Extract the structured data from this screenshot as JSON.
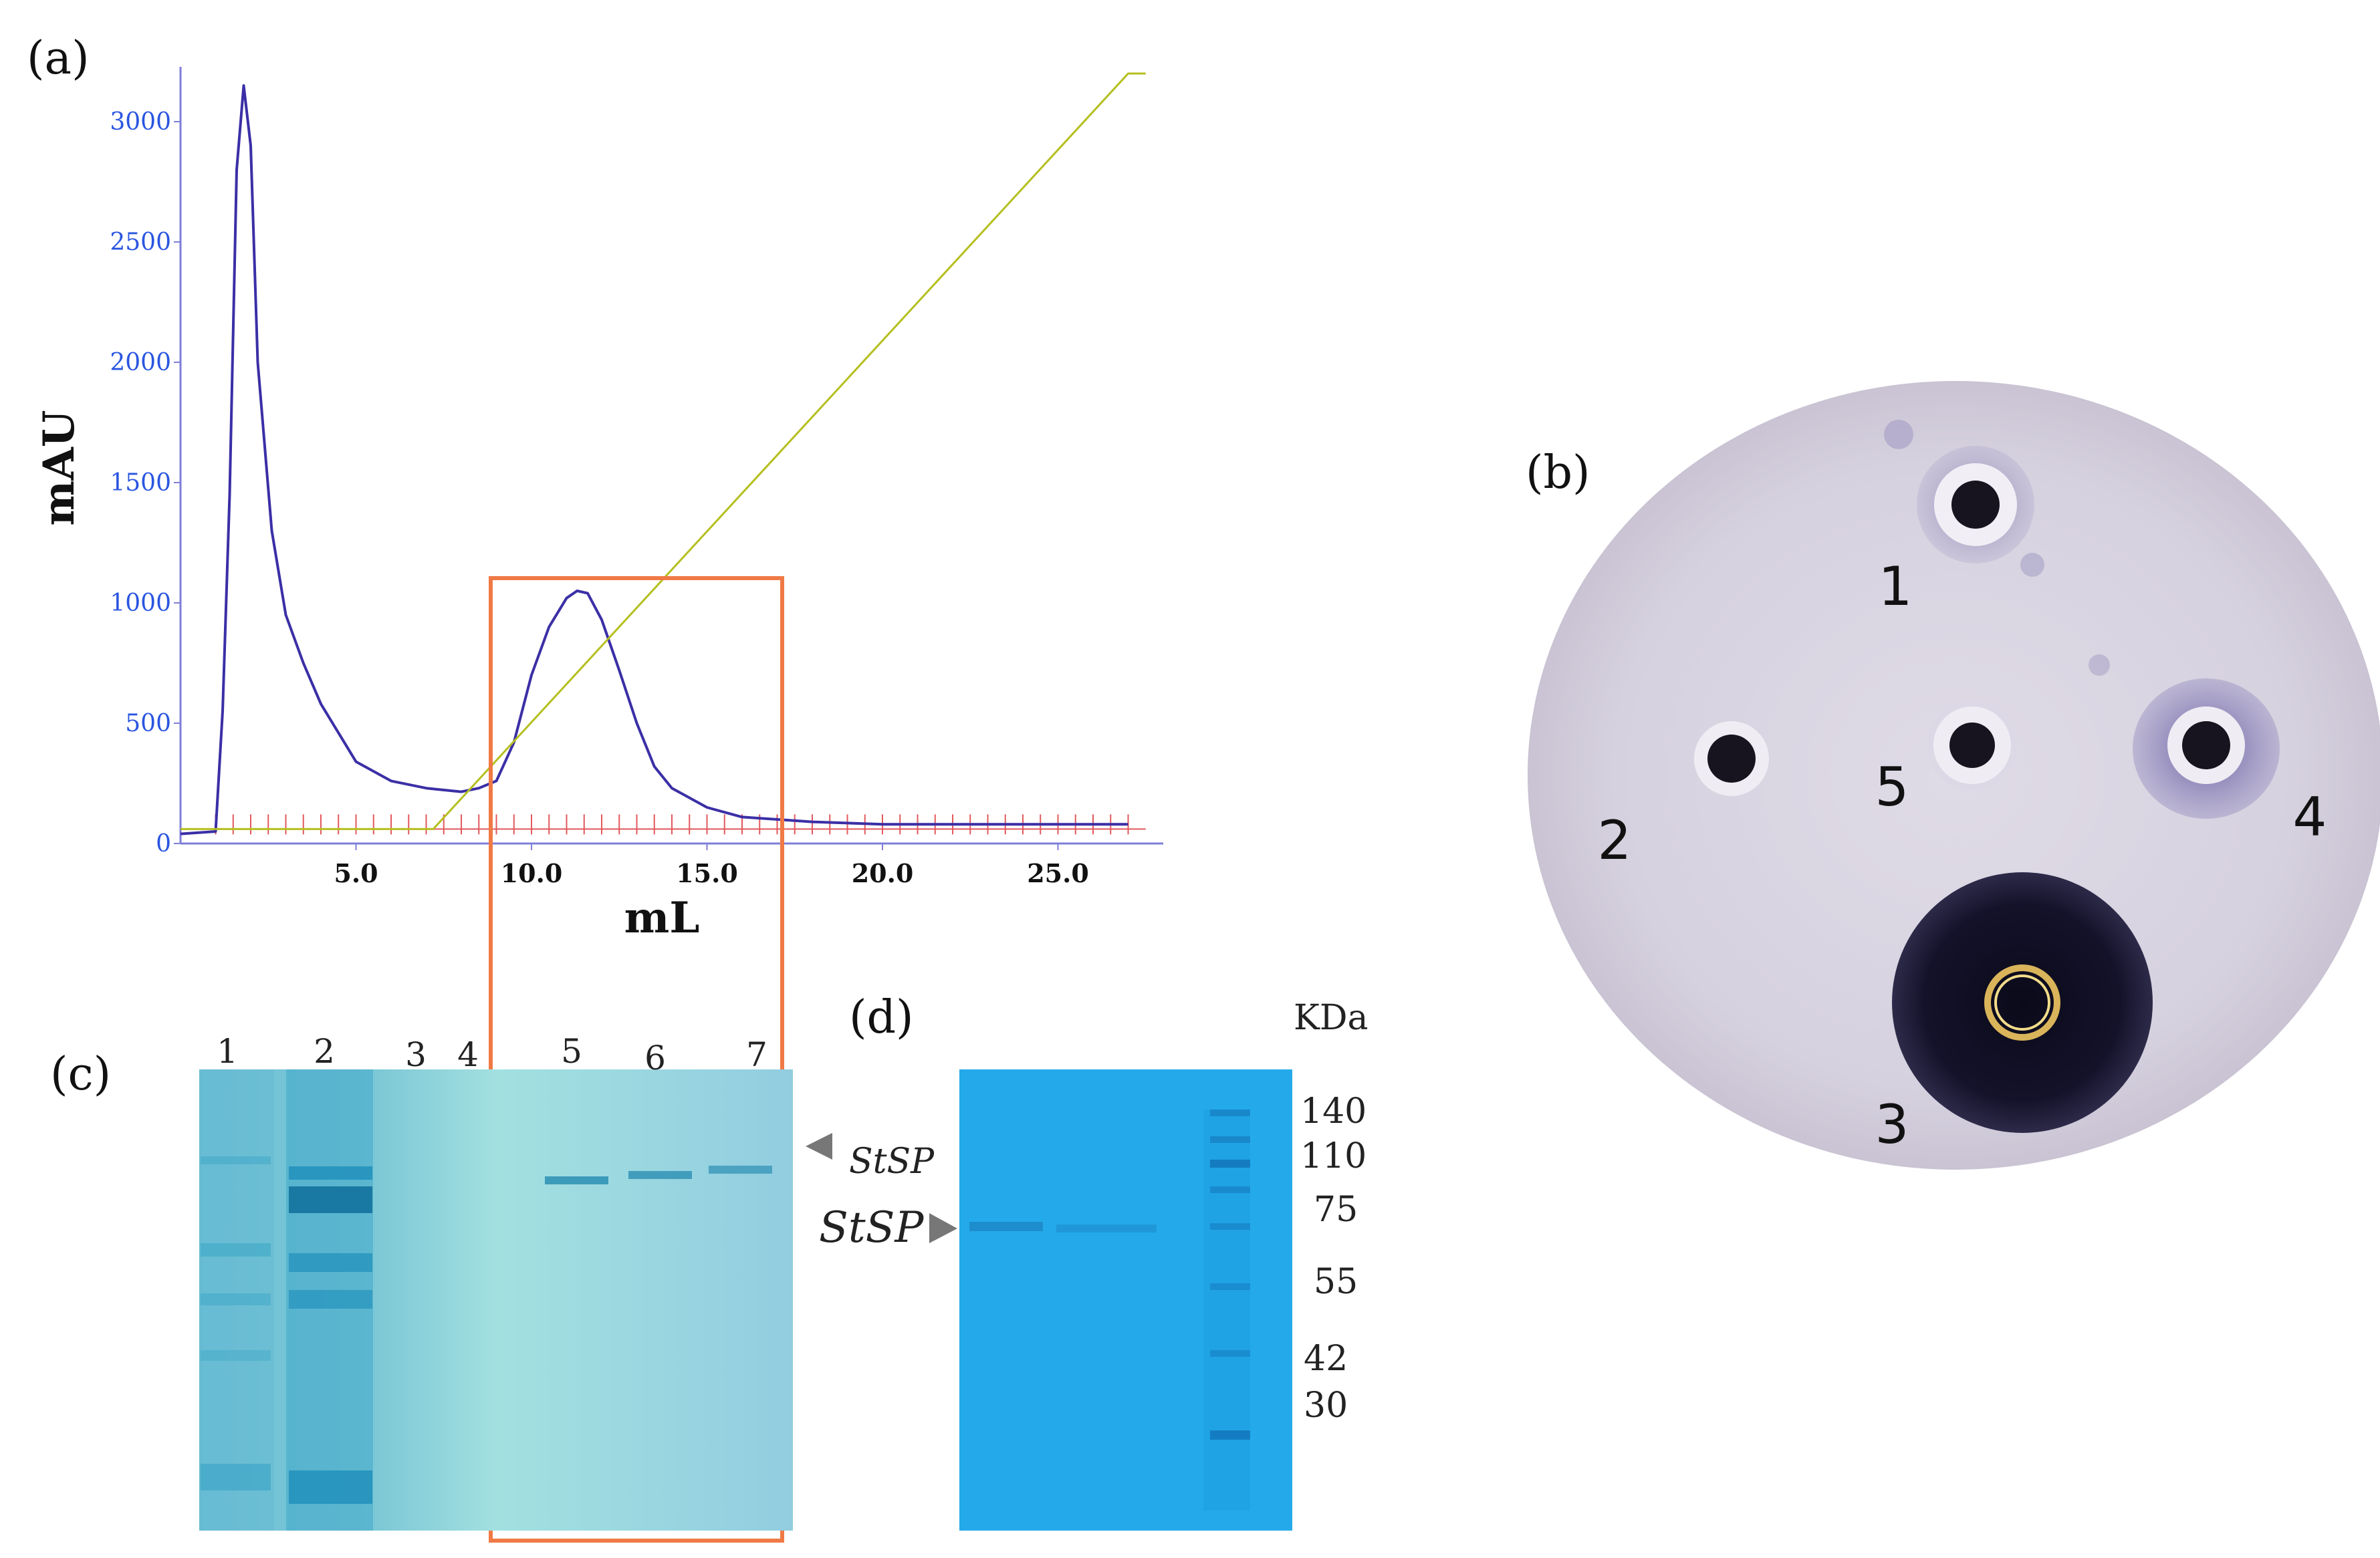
{
  "panels": {
    "a": {
      "label": "(a)"
    },
    "b": {
      "label": "(b)"
    },
    "c": {
      "label": "(c)"
    },
    "d": {
      "label": "(d)"
    }
  },
  "chart_data": {
    "type": "line",
    "xlabel": "mL",
    "ylabel": "mAU",
    "xlim": [
      0,
      28
    ],
    "ylim": [
      0,
      3200
    ],
    "x_ticks": [
      5.0,
      10.0,
      15.0,
      20.0,
      25.0
    ],
    "x_tick_labels": [
      "5.0",
      "10.0",
      "15.0",
      "20.0",
      "25.0"
    ],
    "y_ticks": [
      0,
      500,
      1000,
      1500,
      2000,
      2500,
      3000
    ],
    "y_tick_labels": [
      "0",
      "500",
      "1000",
      "1500",
      "2000",
      "2500",
      "3000"
    ],
    "series": [
      {
        "color": "#3b2fa6",
        "x": [
          0,
          1.0,
          1.2,
          1.4,
          1.6,
          1.8,
          2.0,
          2.2,
          2.6,
          3.0,
          3.5,
          4.0,
          5.0,
          6.0,
          7.0,
          8.0,
          8.5,
          9.0,
          9.5,
          10.0,
          10.5,
          11.0,
          11.3,
          11.6,
          12.0,
          12.5,
          13.0,
          13.5,
          14.0,
          15.0,
          16.0,
          18.0,
          20.0,
          25.0,
          27.0
        ],
        "y": [
          40,
          50,
          550,
          1450,
          2800,
          3150,
          2900,
          2000,
          1300,
          950,
          750,
          580,
          340,
          260,
          230,
          215,
          230,
          260,
          420,
          700,
          900,
          1020,
          1050,
          1040,
          930,
          720,
          500,
          320,
          230,
          150,
          110,
          90,
          80,
          80,
          80
        ]
      },
      {
        "color": "#b5bf1f",
        "x": [
          0,
          7.2,
          27.0,
          27.5
        ],
        "y": [
          60,
          60,
          3200,
          3200
        ]
      }
    ],
    "fraction_marks_x": [
      1.0,
      1.5,
      2.0,
      2.5,
      3.0,
      3.5,
      4.0,
      4.5,
      5.0,
      5.5,
      6.0,
      6.5,
      7.0,
      7.5,
      8.0,
      8.5,
      9.0,
      9.5,
      10.0,
      10.5,
      11.0,
      11.5,
      12.0,
      12.5,
      13.0,
      13.5,
      14.0,
      14.5,
      15.0,
      15.5,
      16.0,
      16.5,
      17.0,
      17.5,
      18.0,
      18.5,
      19.0,
      19.5,
      20.0,
      20.5,
      21.0,
      21.5,
      22.0,
      22.5,
      23.0,
      23.5,
      24.0,
      24.5,
      25.0,
      25.5,
      26.0,
      26.5,
      27.0
    ],
    "highlight_x_range": [
      8.0,
      16.0
    ]
  },
  "gel_c": {
    "lanes": [
      "1",
      "2",
      "3",
      "4",
      "5",
      "6",
      "7"
    ],
    "arrow_label": "StSP"
  },
  "gel_d": {
    "arrow_label": "StSP",
    "marker_unit": "KDa",
    "markers": [
      "140",
      "110",
      "75",
      "55",
      "42",
      "30"
    ]
  },
  "plate_b": {
    "wells": [
      "1",
      "2",
      "3",
      "4",
      "5"
    ]
  },
  "colors": {
    "highlight_box": "#f07a45",
    "gel_c_bg": "#8ecfdf",
    "gel_d_bg": "#1fa7ea",
    "plate_bg": "#d9d4e2",
    "axis_blue": "#2a55e0"
  }
}
